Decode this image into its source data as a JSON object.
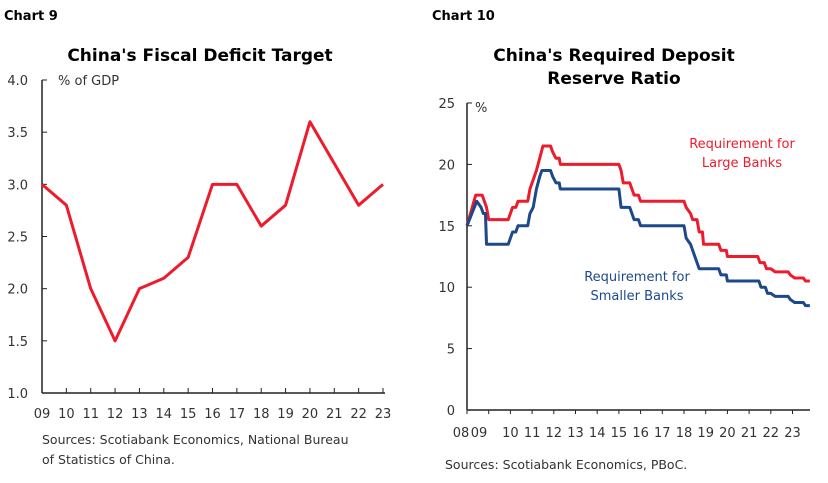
{
  "chart_data": [
    {
      "type": "line",
      "label": "Chart 9",
      "title": "China's Fiscal Deficit Target",
      "ylabel": "% of GDP",
      "categories": [
        "09",
        "10",
        "11",
        "12",
        "13",
        "14",
        "15",
        "16",
        "17",
        "18",
        "19",
        "20",
        "21",
        "22",
        "23"
      ],
      "series": [
        {
          "values": [
            3.0,
            2.8,
            2.0,
            1.5,
            2.0,
            2.1,
            2.3,
            3.0,
            3.0,
            2.6,
            2.8,
            3.6,
            3.2,
            2.8,
            3.0
          ],
          "color": "#ec1c2c"
        }
      ],
      "ylim": [
        1.0,
        4.0
      ],
      "yticks": [
        "1.0",
        "1.5",
        "2.0",
        "2.5",
        "3.0",
        "3.5",
        "4.0"
      ],
      "grid": false,
      "source": [
        "Sources: Scotiabank Economics, National Bureau",
        "of Statistics of China."
      ]
    },
    {
      "type": "line",
      "label": "Chart 10",
      "title": [
        "China's Required Deposit",
        "Reserve Ratio"
      ],
      "ylabel": "%",
      "xticks": [
        "08",
        "09",
        "10",
        "11",
        "12",
        "13",
        "14",
        "15",
        "16",
        "17",
        "18",
        "19",
        "20",
        "21",
        "22",
        "23"
      ],
      "ylim": [
        0,
        25
      ],
      "yticks": [
        "0",
        "5",
        "10",
        "15",
        "20",
        "25"
      ],
      "grid": false,
      "series": [
        {
          "name": "Requirement for Large Banks",
          "label_lines": [
            "Requirement for",
            "Large Banks"
          ],
          "color": "#ec1c2c",
          "points": [
            [
              2008.0,
              15
            ],
            [
              2008.4,
              17.5
            ],
            [
              2008.7,
              17.5
            ],
            [
              2008.8,
              17
            ],
            [
              2008.9,
              16.5
            ],
            [
              2009.0,
              15.5
            ],
            [
              2009.9,
              15.5
            ],
            [
              2010.0,
              16
            ],
            [
              2010.1,
              16.5
            ],
            [
              2010.25,
              16.5
            ],
            [
              2010.35,
              17
            ],
            [
              2010.8,
              17
            ],
            [
              2010.9,
              18
            ],
            [
              2011.0,
              18.5
            ],
            [
              2011.2,
              19.5
            ],
            [
              2011.35,
              20.5
            ],
            [
              2011.5,
              21.5
            ],
            [
              2011.85,
              21.5
            ],
            [
              2011.95,
              21
            ],
            [
              2012.1,
              20.5
            ],
            [
              2012.25,
              20.5
            ],
            [
              2012.3,
              20
            ],
            [
              2015.0,
              20
            ],
            [
              2015.1,
              19.5
            ],
            [
              2015.2,
              18.5
            ],
            [
              2015.5,
              18.5
            ],
            [
              2015.6,
              18
            ],
            [
              2015.7,
              17.5
            ],
            [
              2015.9,
              17.5
            ],
            [
              2016.0,
              17
            ],
            [
              2018.0,
              17
            ],
            [
              2018.1,
              16.5
            ],
            [
              2018.3,
              16
            ],
            [
              2018.4,
              15.5
            ],
            [
              2018.6,
              15.5
            ],
            [
              2018.7,
              14.5
            ],
            [
              2018.85,
              14.5
            ],
            [
              2018.9,
              13.5
            ],
            [
              2019.6,
              13.5
            ],
            [
              2019.7,
              13
            ],
            [
              2019.95,
              13
            ],
            [
              2020.0,
              12.5
            ],
            [
              2021.4,
              12.5
            ],
            [
              2021.5,
              12
            ],
            [
              2021.7,
              12
            ],
            [
              2021.8,
              11.5
            ],
            [
              2022.0,
              11.5
            ],
            [
              2022.2,
              11.25
            ],
            [
              2022.8,
              11.25
            ],
            [
              2022.9,
              11
            ],
            [
              2023.1,
              10.75
            ],
            [
              2023.5,
              10.75
            ],
            [
              2023.6,
              10.5
            ],
            [
              2023.8,
              10.5
            ]
          ]
        },
        {
          "name": "Requirement for Smaller Banks",
          "label_lines": [
            "Requirement for",
            "Smaller Banks"
          ],
          "color": "#1d4889",
          "points": [
            [
              2008.0,
              15
            ],
            [
              2008.45,
              17
            ],
            [
              2008.65,
              16.5
            ],
            [
              2008.75,
              16
            ],
            [
              2008.85,
              16
            ],
            [
              2008.9,
              13.5
            ],
            [
              2009.9,
              13.5
            ],
            [
              2010.0,
              14
            ],
            [
              2010.1,
              14.5
            ],
            [
              2010.25,
              14.5
            ],
            [
              2010.35,
              15
            ],
            [
              2010.8,
              15
            ],
            [
              2010.9,
              16
            ],
            [
              2011.05,
              16.5
            ],
            [
              2011.2,
              18
            ],
            [
              2011.35,
              19
            ],
            [
              2011.45,
              19.5
            ],
            [
              2011.85,
              19.5
            ],
            [
              2011.95,
              19
            ],
            [
              2012.1,
              18.5
            ],
            [
              2012.25,
              18.5
            ],
            [
              2012.3,
              18
            ],
            [
              2015.0,
              18
            ],
            [
              2015.1,
              16.5
            ],
            [
              2015.5,
              16.5
            ],
            [
              2015.6,
              16
            ],
            [
              2015.7,
              15.5
            ],
            [
              2015.9,
              15.5
            ],
            [
              2016.0,
              15
            ],
            [
              2018.0,
              15
            ],
            [
              2018.1,
              14
            ],
            [
              2018.3,
              13.5
            ],
            [
              2018.5,
              12.5
            ],
            [
              2018.7,
              11.5
            ],
            [
              2019.6,
              11.5
            ],
            [
              2019.7,
              11
            ],
            [
              2019.95,
              11
            ],
            [
              2020.0,
              10.5
            ],
            [
              2021.45,
              10.5
            ],
            [
              2021.55,
              10
            ],
            [
              2021.75,
              10
            ],
            [
              2021.85,
              9.5
            ],
            [
              2022.0,
              9.5
            ],
            [
              2022.2,
              9.25
            ],
            [
              2022.8,
              9.25
            ],
            [
              2022.9,
              9
            ],
            [
              2023.1,
              8.75
            ],
            [
              2023.5,
              8.75
            ],
            [
              2023.6,
              8.5
            ],
            [
              2023.8,
              8.5
            ]
          ]
        }
      ],
      "source": [
        "Sources: Scotiabank Economics, PBoC."
      ]
    }
  ]
}
